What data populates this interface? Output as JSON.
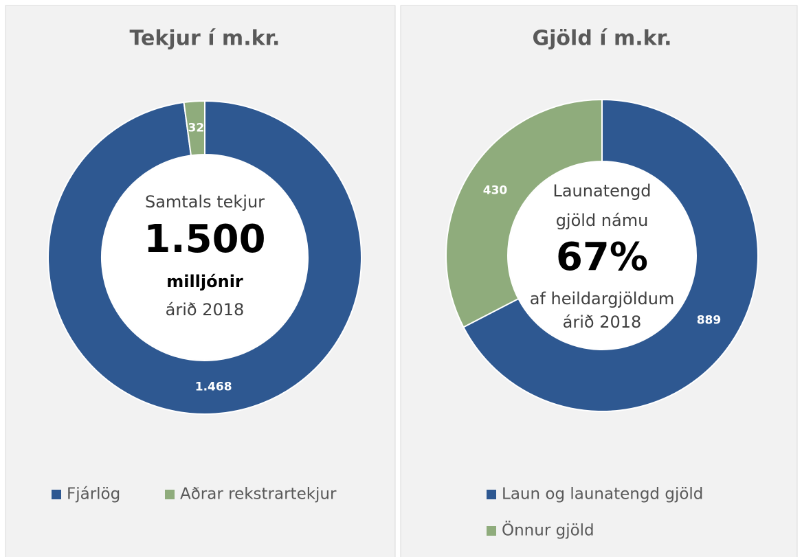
{
  "chart_data": [
    {
      "type": "donut",
      "title": "Tekjur í m.kr.",
      "categories": [
        "Fjárlög",
        "Aðrar rekstrartekjur"
      ],
      "values": [
        1468,
        32
      ],
      "value_labels": [
        "1.468",
        "32"
      ],
      "colors": [
        "#2e5891",
        "#8fac7c"
      ],
      "annotations": [
        "Samtals tekjur",
        "1.500",
        "milljónir",
        "árið 2018"
      ],
      "legend": "bottom"
    },
    {
      "type": "donut",
      "title": "Gjöld í m.kr.",
      "categories": [
        "Laun og launatengd gjöld",
        "Önnur gjöld"
      ],
      "values": [
        889,
        430
      ],
      "value_labels": [
        "889",
        "430"
      ],
      "colors": [
        "#2e5891",
        "#8fac7c"
      ],
      "annotations": [
        "Launatengd",
        "gjöld námu",
        "67%",
        "af heildargjöldum",
        "árið 2018"
      ],
      "legend": "bottom"
    }
  ]
}
